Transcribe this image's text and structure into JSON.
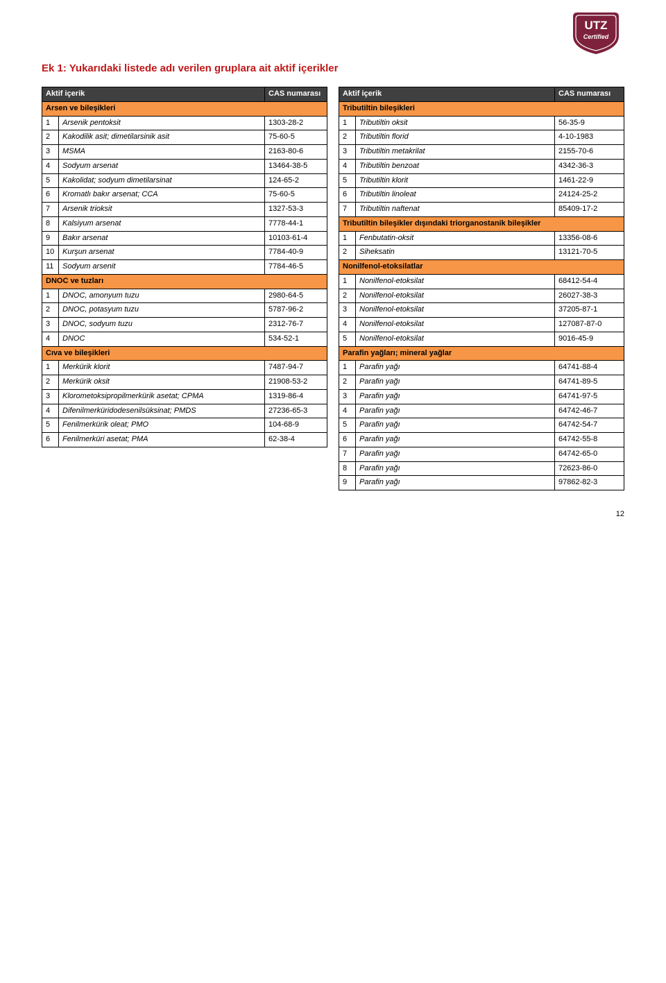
{
  "heading_color": "#c01818",
  "header_bg": "#404040",
  "section_bg": "#f79646",
  "border_color": "#000000",
  "heading": "Ek 1: Yukarıdaki listede adı verilen gruplara ait aktif içerikler",
  "page_number": "12",
  "left": {
    "header": {
      "name": "Aktif içerik",
      "cas": "CAS numarası"
    },
    "groups": [
      {
        "title": "Arsen ve bileşikleri",
        "rows": [
          [
            "1",
            "Arsenik pentoksit",
            "1303-28-2"
          ],
          [
            "2",
            "Kakodilik asit; dimetilarsinik asit",
            "75-60-5"
          ],
          [
            "3",
            "MSMA",
            "2163-80-6"
          ],
          [
            "4",
            "Sodyum arsenat",
            "13464-38-5"
          ],
          [
            "5",
            "Kakolidat; sodyum dimetilarsinat",
            "124-65-2"
          ],
          [
            "6",
            "Kromatlı bakır arsenat; CCA",
            "75-60-5"
          ],
          [
            "7",
            "Arsenik trioksit",
            "1327-53-3"
          ],
          [
            "8",
            "Kalsiyum arsenat",
            "7778-44-1"
          ],
          [
            "9",
            "Bakır arsenat",
            "10103-61-4"
          ],
          [
            "10",
            "Kurşun arsenat",
            "7784-40-9"
          ],
          [
            "11",
            "Sodyum arsenit",
            "7784-46-5"
          ]
        ]
      },
      {
        "title": "DNOC ve tuzları",
        "rows": [
          [
            "1",
            "DNOC, amonyum tuzu",
            "2980-64-5"
          ],
          [
            "2",
            "DNOC, potasyum tuzu",
            "5787-96-2"
          ],
          [
            "3",
            "DNOC, sodyum tuzu",
            "2312-76-7"
          ],
          [
            "4",
            "DNOC",
            "534-52-1"
          ]
        ]
      },
      {
        "title": "Cıva ve bileşikleri",
        "rows": [
          [
            "1",
            "Merkürik klorit",
            "7487-94-7"
          ],
          [
            "2",
            "Merkürik oksit",
            "21908-53-2"
          ],
          [
            "3",
            "Klorometoksipropilmerkürik asetat; CPMA",
            "1319-86-4"
          ],
          [
            "4",
            "Difenilmerküridodesenilsüksinat; PMDS",
            "27236-65-3"
          ],
          [
            "5",
            "Fenilmerkürik oleat; PMO",
            "104-68-9"
          ],
          [
            "6",
            "Fenilmerküri asetat; PMA",
            "62-38-4"
          ]
        ]
      }
    ]
  },
  "right": {
    "header": {
      "name": "Aktif içerik",
      "cas": "CAS numarası"
    },
    "groups": [
      {
        "title": "Tributiltin bileşikleri",
        "rows": [
          [
            "1",
            "Tributiltin oksit",
            "56-35-9"
          ],
          [
            "2",
            "Tributiltin florid",
            "4-10-1983"
          ],
          [
            "3",
            "Tributiltin metakrilat",
            "2155-70-6"
          ],
          [
            "4",
            "Tributiltin benzoat",
            "4342-36-3"
          ],
          [
            "5",
            "Tributiltin klorit",
            "1461-22-9"
          ],
          [
            "6",
            "Tributiltin linoleat",
            "24124-25-2"
          ],
          [
            "7",
            "Tributiltin naftenat",
            "85409-17-2"
          ]
        ]
      },
      {
        "title": "Tributiltin bileşikler dışındaki triorganostanik bileşikler",
        "rows": [
          [
            "1",
            "Fenbutatin-oksit",
            "13356-08-6"
          ],
          [
            "2",
            "Siheksatin",
            "13121-70-5"
          ]
        ]
      },
      {
        "title": "Nonilfenol-etoksilatlar",
        "rows": [
          [
            "1",
            "Nonilfenol-etoksilat",
            "68412-54-4"
          ],
          [
            "2",
            "Nonilfenol-etoksilat",
            "26027-38-3"
          ],
          [
            "3",
            "Nonilfenol-etoksilat",
            "37205-87-1"
          ],
          [
            "4",
            "Nonilfenol-etoksilat",
            "127087-87-0"
          ],
          [
            "5",
            "Nonilfenol-etoksilat",
            "9016-45-9"
          ]
        ]
      },
      {
        "title": "Parafin yağları; mineral yağlar",
        "rows": [
          [
            "1",
            "Parafin yağı",
            "64741-88-4"
          ],
          [
            "2",
            "Parafin yağı",
            "64741-89-5"
          ],
          [
            "3",
            "Parafin yağı",
            "64741-97-5"
          ],
          [
            "4",
            "Parafin yağı",
            "64742-46-7"
          ],
          [
            "5",
            "Parafin yağı",
            "64742-54-7"
          ],
          [
            "6",
            "Parafin yağı",
            "64742-55-8"
          ],
          [
            "7",
            "Parafin yağı",
            "64742-65-0"
          ],
          [
            "8",
            "Parafin yağı",
            "72623-86-0"
          ],
          [
            "9",
            "Parafin yağı",
            "97862-82-3"
          ]
        ]
      }
    ]
  }
}
